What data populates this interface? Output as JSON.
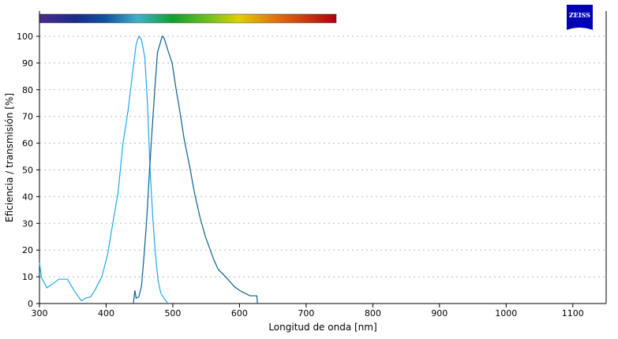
{
  "brand": {
    "logo_text": "ZEISS",
    "logo_color": "#0000b4"
  },
  "chart_data": {
    "type": "line",
    "xlabel": "Longitud de onda [nm]",
    "ylabel": "Eficiencia / transmisión [%]",
    "xlim": [
      300,
      1150
    ],
    "ylim": [
      0,
      100
    ],
    "xticks": [
      300,
      400,
      500,
      600,
      700,
      800,
      900,
      1000,
      1100
    ],
    "yticks": [
      0,
      10,
      20,
      30,
      40,
      50,
      60,
      70,
      80,
      90,
      100
    ],
    "grid": "horizontal dashed",
    "spectrum_bar": {
      "range_nm": [
        300,
        745
      ]
    },
    "series": [
      {
        "color": "#1ea8ee",
        "x": [
          300,
          303,
          311,
          317,
          323,
          329,
          342,
          353,
          363,
          369,
          377,
          384,
          394,
          402,
          410,
          418,
          425,
          433,
          439,
          445,
          449,
          453,
          458,
          462,
          466,
          470,
          474,
          478,
          482,
          488,
          493
        ],
        "y": [
          15.2,
          9.8,
          5.9,
          6.9,
          7.9,
          9.1,
          9.1,
          4.4,
          1,
          2,
          2.5,
          5.4,
          10.3,
          18.2,
          30,
          41.8,
          59.5,
          72.3,
          85,
          97,
          100,
          98.8,
          92,
          75,
          49.7,
          32,
          18.2,
          8.4,
          3.9,
          1.5,
          0
        ]
      },
      {
        "color": "#0b5f92",
        "x": [
          441,
          443,
          445,
          449,
          453,
          457,
          461,
          465,
          469,
          473,
          477,
          481,
          484,
          487,
          493,
          499,
          505,
          511,
          517,
          525,
          533,
          541,
          549,
          561,
          568,
          580,
          592,
          600,
          608,
          616,
          626,
          627
        ],
        "y": [
          0,
          4.9,
          2,
          2.5,
          6.4,
          18.2,
          32,
          49.7,
          65.4,
          80,
          94,
          97.3,
          100,
          99.3,
          94.5,
          90,
          80,
          71.3,
          61.5,
          51.6,
          40.8,
          32,
          25,
          16.7,
          12.8,
          9.8,
          6.4,
          4.9,
          3.9,
          2.9,
          2.9,
          0
        ]
      }
    ]
  }
}
